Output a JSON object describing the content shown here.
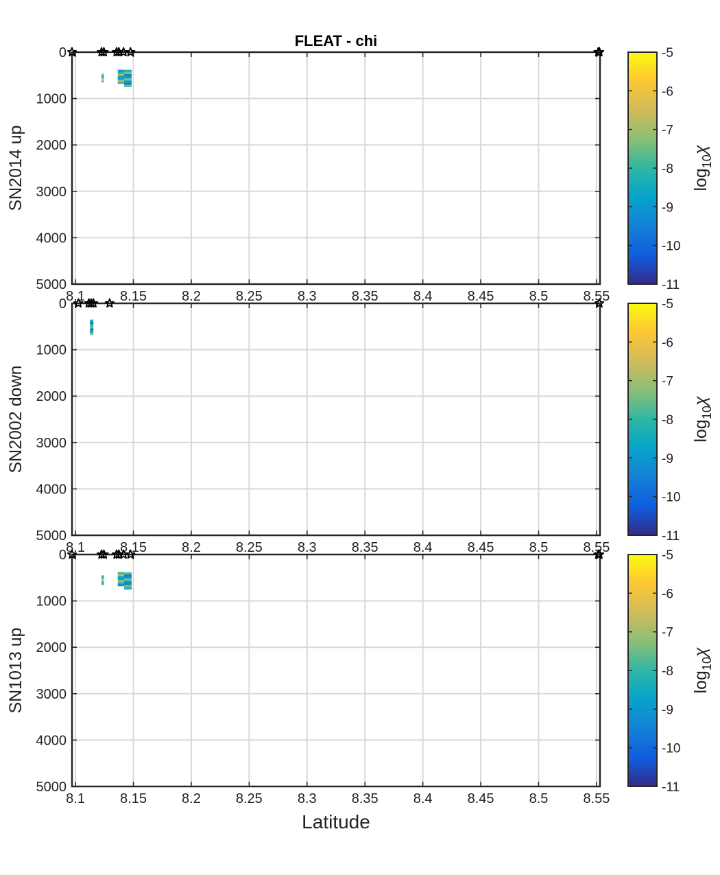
{
  "chart_data": {
    "type": "heatmap",
    "title": "FLEAT  -  chi",
    "xlabel": "Latitude",
    "xlim": [
      8.097,
      8.553
    ],
    "xticks": [
      8.1,
      8.15,
      8.2,
      8.25,
      8.3,
      8.35,
      8.4,
      8.45,
      8.5,
      8.55
    ],
    "xtick_labels": [
      "8.1",
      "8.15",
      "8.2",
      "8.25",
      "8.3",
      "8.35",
      "8.4",
      "8.45",
      "8.5",
      "8.55"
    ],
    "ylim": [
      0,
      5000
    ],
    "y_reversed": true,
    "yticks": [
      0,
      1000,
      2000,
      3000,
      4000,
      5000
    ],
    "ytick_labels": [
      "0",
      "1000",
      "2000",
      "3000",
      "4000",
      "5000"
    ],
    "grid": true,
    "colormap": "parula",
    "colorbar": {
      "label": "log10χ",
      "label_base": "log",
      "label_sub": "10",
      "label_sym": "χ",
      "clim": [
        -11,
        -5
      ],
      "ticks": [
        -5,
        -6,
        -7,
        -8,
        -9,
        -10,
        -11
      ],
      "tick_labels": [
        "-5",
        "-6",
        "-7",
        "-8",
        "-9",
        "-10",
        "-11"
      ]
    },
    "panels": [
      {
        "ylabel": "SN2014 up",
        "stars": [
          8.097,
          8.1225,
          8.1245,
          8.1355,
          8.1375,
          8.1415,
          8.1475,
          8.5515,
          8.5525
        ],
        "blocks": [
          {
            "x": [
              8.1225,
              8.1245
            ],
            "y": [
              450,
              650
            ],
            "level": -7.5
          },
          {
            "x": [
              8.1365,
              8.142
            ],
            "y": [
              380,
              680
            ],
            "level": -8
          },
          {
            "x": [
              8.142,
              8.1485
            ],
            "y": [
              380,
              750
            ],
            "level": -8.5
          }
        ]
      },
      {
        "ylabel": "SN2002 down",
        "stars": [
          8.1025,
          8.1115,
          8.1135,
          8.1155,
          8.1295,
          8.5525
        ],
        "blocks": [
          {
            "x": [
              8.1125,
              8.1155
            ],
            "y": [
              350,
              680
            ],
            "level": -8.5
          }
        ]
      },
      {
        "ylabel": "SN1013 up",
        "stars": [
          8.097,
          8.1225,
          8.1245,
          8.1355,
          8.1375,
          8.1415,
          8.1475,
          8.5515,
          8.5525
        ],
        "blocks": [
          {
            "x": [
              8.1225,
              8.1245
            ],
            "y": [
              450,
              650
            ],
            "level": -7.5
          },
          {
            "x": [
              8.1365,
              8.142
            ],
            "y": [
              380,
              680
            ],
            "level": -8
          },
          {
            "x": [
              8.142,
              8.1485
            ],
            "y": [
              380,
              750
            ],
            "level": -8.5
          }
        ]
      }
    ]
  }
}
